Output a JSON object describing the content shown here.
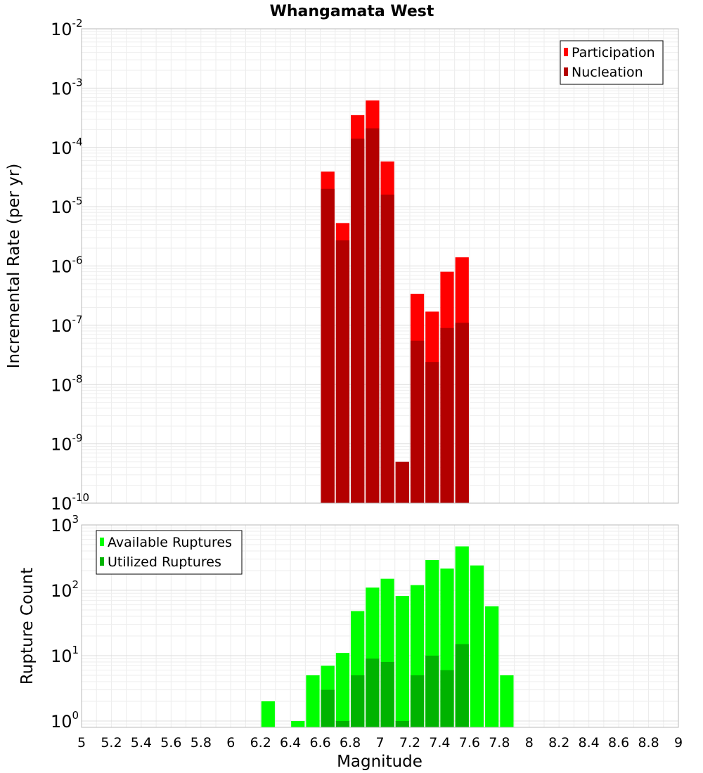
{
  "chart_data": [
    {
      "type": "bar",
      "title": "Whangamata West",
      "xlabel": "",
      "ylabel": "Incremental Rate (per yr)",
      "scale_y": "log",
      "xlim": [
        5,
        9
      ],
      "ylim": [
        1e-10,
        0.01
      ],
      "y_ticks": [
        {
          "mantissa": "10",
          "exp": "-10"
        },
        {
          "mantissa": "10",
          "exp": "-9"
        },
        {
          "mantissa": "10",
          "exp": "-8"
        },
        {
          "mantissa": "10",
          "exp": "-7"
        },
        {
          "mantissa": "10",
          "exp": "-6"
        },
        {
          "mantissa": "10",
          "exp": "-5"
        },
        {
          "mantissa": "10",
          "exp": "-4"
        },
        {
          "mantissa": "10",
          "exp": "-3"
        },
        {
          "mantissa": "10",
          "exp": "-2"
        }
      ],
      "grid": true,
      "legend_position": "top-right",
      "bin_width": 0.1,
      "x": [
        6.65,
        6.75,
        6.85,
        6.95,
        7.05,
        7.15,
        7.25,
        7.35,
        7.45,
        7.55
      ],
      "series": [
        {
          "name": "Participation",
          "color": "#ff0000",
          "values": [
            3.9e-05,
            5.3e-06,
            0.00035,
            0.00062,
            5.8e-05,
            5e-10,
            3.4e-07,
            1.7e-07,
            8e-07,
            1.4e-06
          ]
        },
        {
          "name": "Nucleation",
          "color": "#b30000",
          "values": [
            2e-05,
            2.7e-06,
            0.00014,
            0.00021,
            1.6e-05,
            5e-10,
            5.5e-08,
            2.4e-08,
            9e-08,
            1.1e-07
          ]
        }
      ]
    },
    {
      "type": "bar",
      "title": "",
      "xlabel": "Magnitude",
      "ylabel": "Rupture Count",
      "scale_y": "log",
      "xlim": [
        5,
        9
      ],
      "ylim": [
        0.8,
        1000
      ],
      "x_ticks": [
        "5",
        "5.2",
        "5.4",
        "5.6",
        "5.8",
        "6",
        "6.2",
        "6.4",
        "6.6",
        "6.8",
        "7",
        "7.2",
        "7.4",
        "7.6",
        "7.8",
        "8",
        "8.2",
        "8.4",
        "8.6",
        "8.8",
        "9"
      ],
      "y_ticks": [
        {
          "mantissa": "10",
          "exp": "0"
        },
        {
          "mantissa": "10",
          "exp": "1"
        },
        {
          "mantissa": "10",
          "exp": "2"
        },
        {
          "mantissa": "10",
          "exp": "3"
        }
      ],
      "grid": true,
      "legend_position": "top-left",
      "bin_width": 0.1,
      "x": [
        6.25,
        6.45,
        6.55,
        6.65,
        6.75,
        6.85,
        6.95,
        7.05,
        7.15,
        7.25,
        7.35,
        7.45,
        7.55,
        7.65,
        7.75,
        7.85
      ],
      "series": [
        {
          "name": "Available Ruptures",
          "color": "#00ff00",
          "values": [
            2,
            1,
            5,
            7,
            11,
            48,
            110,
            150,
            82,
            120,
            290,
            215,
            470,
            240,
            57,
            5
          ]
        },
        {
          "name": "Utilized Ruptures",
          "color": "#00b300",
          "values": [
            0,
            0,
            0,
            3,
            1,
            5,
            9,
            8,
            1,
            5,
            10,
            6,
            15,
            0,
            0,
            0
          ]
        }
      ]
    }
  ]
}
